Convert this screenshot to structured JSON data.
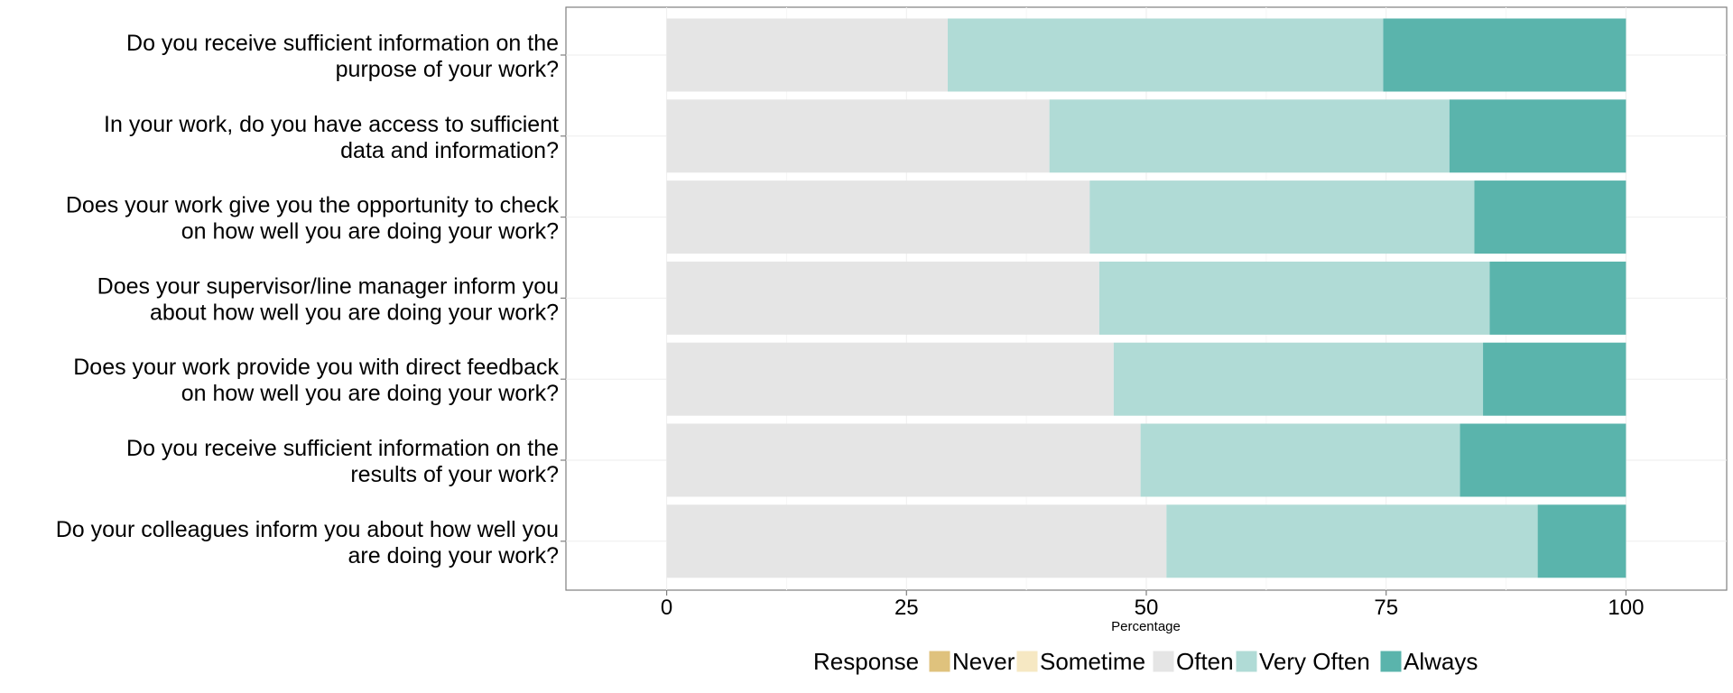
{
  "chart_data": {
    "type": "bar",
    "orientation": "horizontal",
    "stacked": true,
    "xlabel": "Percentage",
    "ylabel": "",
    "xlim": [
      -10.5,
      110.5
    ],
    "xticks": [
      0,
      25,
      50,
      75,
      100
    ],
    "grid": true,
    "legend_position": "bottom",
    "legend_title": "Response",
    "categories": [
      [
        "Do you receive sufficient information on the",
        "purpose of your work?"
      ],
      [
        "In your work, do you have access to sufficient",
        "data and information?"
      ],
      [
        "Does your work give you the opportunity to check",
        "on how well you are doing your work?"
      ],
      [
        "Does your supervisor/line manager inform you",
        "about how well you are doing your work?"
      ],
      [
        "Does your work provide you with direct feedback",
        "on how well you are doing your work?"
      ],
      [
        "Do you receive sufficient information on the",
        "results of your work?"
      ],
      [
        "Do your colleagues inform you about how well you",
        "are doing your work?"
      ]
    ],
    "series": [
      {
        "name": "Never",
        "color": "#dfc27d",
        "values": [
          0,
          0,
          0,
          0,
          0,
          0,
          0
        ]
      },
      {
        "name": "Sometime",
        "color": "#f6e8c3",
        "values": [
          0,
          0,
          0,
          0,
          0,
          0,
          0
        ]
      },
      {
        "name": "Often",
        "color": "#e5e5e5",
        "values": [
          29.3,
          39.9,
          44.1,
          45.1,
          46.6,
          49.4,
          52.1
        ]
      },
      {
        "name": "Very Often",
        "color": "#b0dbd6",
        "values": [
          45.4,
          41.7,
          40.1,
          40.7,
          38.5,
          33.3,
          38.7
        ]
      },
      {
        "name": "Always",
        "color": "#5ab4ac",
        "values": [
          25.3,
          18.4,
          15.8,
          14.2,
          14.9,
          17.3,
          9.2
        ]
      }
    ]
  }
}
